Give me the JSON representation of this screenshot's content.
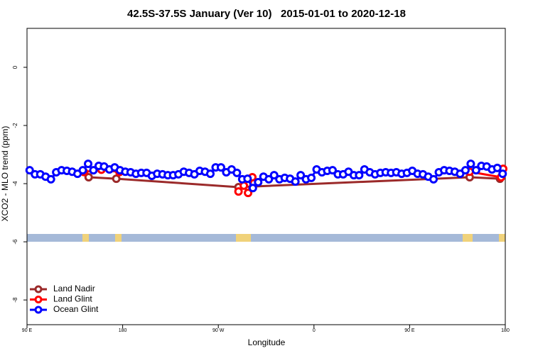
{
  "chart_data": {
    "type": "line",
    "title": "42.5S-37.5S January (Ver 10)   2015-01-01 to 2020-12-18",
    "x_label": "Longitude",
    "y_label": "XCO2 - MLO trend (ppm)",
    "xlim": [
      90,
      540
    ],
    "xticks": [
      {
        "value": 90,
        "label": "90 E"
      },
      {
        "value": 180,
        "label": "180"
      },
      {
        "value": 270,
        "label": "90 W"
      },
      {
        "value": 360,
        "label": "0"
      },
      {
        "value": 450,
        "label": "90 E"
      },
      {
        "value": 540,
        "label": "180"
      }
    ],
    "ylim": [
      -8.85,
      1.34
    ],
    "yticks": [
      0,
      -2,
      -4,
      -6,
      -8
    ],
    "legend": "bottom-left",
    "series": [
      {
        "name": "Land Nadir",
        "color": "#9b2a2a",
        "x": [
          148,
          174,
          289,
          506.5,
          535
        ],
        "values": [
          -3.78,
          -3.83,
          -4.12,
          -3.78,
          -3.83
        ]
      },
      {
        "name": "Land Glint",
        "color": "#ff0000",
        "x": [
          143.6,
          160,
          177,
          220,
          289,
          294,
          298,
          302,
          400,
          506.5,
          536,
          538
        ],
        "values": [
          -3.6,
          -3.52,
          -3.6,
          null,
          -4.27,
          -4.07,
          -4.32,
          -3.78,
          null,
          -3.59,
          -3.78,
          -3.49
        ]
      },
      {
        "name": "Ocean Glint",
        "color": "#0000ff",
        "x": [
          92.5,
          97.5,
          102.5,
          107.5,
          112.5,
          117.5,
          122.5,
          127.5,
          132.5,
          137.5,
          142.5,
          147.5,
          152.5,
          157.5,
          162.5,
          167.5,
          172.5,
          177.5,
          182.5,
          187.5,
          192.5,
          197.5,
          202.5,
          207.5,
          212.5,
          217.5,
          222.5,
          227.5,
          232.5,
          237.5,
          242.5,
          247.5,
          252.5,
          257.5,
          262.5,
          267.5,
          272.5,
          277.5,
          282.5,
          287.5,
          292.5,
          297.5,
          302.5,
          307.5,
          312.5,
          317.5,
          322.5,
          327.5,
          332.5,
          337.5,
          342.5,
          347.5,
          352.5,
          357.5,
          362.5,
          367.5,
          372.5,
          377.5,
          382.5,
          387.5,
          392.5,
          397.5,
          402.5,
          407.5,
          412.5,
          417.5,
          422.5,
          427.5,
          432.5,
          437.5,
          442.5,
          447.5,
          452.5,
          457.5,
          462.5,
          467.5,
          472.5,
          477.5,
          482.5,
          487.5,
          492.5,
          497.5,
          502.5,
          507.5,
          512.5,
          517.5,
          522.5,
          527.5,
          532.5,
          537.5
        ],
        "values": [
          -3.54,
          -3.68,
          -3.68,
          -3.76,
          -3.85,
          -3.61,
          -3.54,
          -3.56,
          -3.59,
          -3.66,
          -3.54,
          -3.32,
          -3.54,
          -3.39,
          -3.41,
          -3.51,
          -3.44,
          -3.54,
          -3.59,
          -3.61,
          -3.66,
          -3.63,
          -3.63,
          -3.73,
          -3.66,
          -3.68,
          -3.71,
          -3.71,
          -3.68,
          -3.59,
          -3.63,
          -3.68,
          -3.56,
          -3.59,
          -3.66,
          -3.44,
          -3.44,
          -3.61,
          -3.51,
          -3.63,
          -3.85,
          -3.83,
          -4.15,
          -3.95,
          -3.76,
          -3.85,
          -3.71,
          -3.85,
          -3.8,
          -3.83,
          -3.93,
          -3.71,
          -3.85,
          -3.8,
          -3.51,
          -3.61,
          -3.56,
          -3.54,
          -3.68,
          -3.68,
          -3.59,
          -3.71,
          -3.71,
          -3.51,
          -3.61,
          -3.68,
          -3.63,
          -3.61,
          -3.63,
          -3.61,
          -3.66,
          -3.63,
          -3.56,
          -3.66,
          -3.68,
          -3.76,
          -3.85,
          -3.61,
          -3.54,
          -3.56,
          -3.59,
          -3.66,
          -3.54,
          -3.32,
          -3.54,
          -3.39,
          -3.41,
          -3.51,
          -3.46,
          -3.66
        ]
      }
    ]
  }
}
